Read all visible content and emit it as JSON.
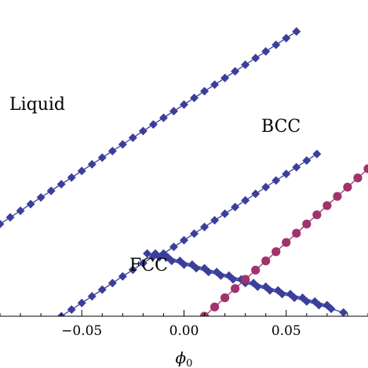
{
  "chart_data": {
    "type": "scatter",
    "xlim": [
      -0.09,
      0.09
    ],
    "xlabel": "ϕ",
    "xlabel_subscript": "0",
    "x_ticks": [
      {
        "value": -0.05,
        "label": "−0.05"
      },
      {
        "value": 0.0,
        "label": "0.00"
      },
      {
        "value": 0.05,
        "label": "0.05"
      }
    ],
    "region_labels": [
      {
        "text": "Liquid"
      },
      {
        "text": "BCC"
      },
      {
        "text": "FCC"
      }
    ],
    "series": [
      {
        "id": "liquid-bcc-boundary",
        "marker": "diamond",
        "color": "#3b3f9b",
        "points": [
          [
            -0.09,
            0.5
          ],
          [
            -0.085,
            0.536
          ],
          [
            -0.08,
            0.572
          ],
          [
            -0.075,
            0.608
          ],
          [
            -0.07,
            0.644
          ],
          [
            -0.065,
            0.68
          ],
          [
            -0.06,
            0.716
          ],
          [
            -0.055,
            0.752
          ],
          [
            -0.05,
            0.788
          ],
          [
            -0.045,
            0.824
          ],
          [
            -0.04,
            0.86
          ],
          [
            -0.035,
            0.896
          ],
          [
            -0.03,
            0.932
          ],
          [
            -0.025,
            0.968
          ],
          [
            -0.02,
            1.004
          ],
          [
            -0.015,
            1.04
          ],
          [
            -0.01,
            1.076
          ],
          [
            -0.005,
            1.112
          ],
          [
            0.0,
            1.148
          ],
          [
            0.005,
            1.184
          ],
          [
            0.01,
            1.22
          ],
          [
            0.015,
            1.256
          ],
          [
            0.02,
            1.292
          ],
          [
            0.025,
            1.328
          ],
          [
            0.03,
            1.364
          ],
          [
            0.035,
            1.4
          ],
          [
            0.04,
            1.436
          ],
          [
            0.045,
            1.472
          ],
          [
            0.05,
            1.508
          ],
          [
            0.055,
            1.544
          ]
        ]
      },
      {
        "id": "fcc-bcc-boundary-left",
        "marker": "diamond",
        "color": "#3b3f9b",
        "points": [
          [
            -0.06,
            0.0
          ],
          [
            -0.055,
            0.036
          ],
          [
            -0.05,
            0.072
          ],
          [
            -0.045,
            0.108
          ],
          [
            -0.04,
            0.144
          ],
          [
            -0.035,
            0.18
          ],
          [
            -0.03,
            0.216
          ],
          [
            -0.025,
            0.252
          ],
          [
            -0.02,
            0.288
          ],
          [
            -0.015,
            0.324
          ],
          [
            -0.01,
            0.34
          ],
          [
            -0.005,
            0.376
          ],
          [
            0.0,
            0.412
          ],
          [
            0.005,
            0.448
          ],
          [
            0.01,
            0.484
          ],
          [
            0.015,
            0.52
          ],
          [
            0.02,
            0.556
          ],
          [
            0.025,
            0.592
          ],
          [
            0.03,
            0.628
          ],
          [
            0.035,
            0.664
          ],
          [
            0.04,
            0.7
          ],
          [
            0.045,
            0.736
          ],
          [
            0.05,
            0.772
          ],
          [
            0.055,
            0.808
          ],
          [
            0.06,
            0.844
          ],
          [
            0.065,
            0.88
          ]
        ]
      },
      {
        "id": "fcc-boundary-right-a",
        "marker": "diamond",
        "color": "#3b3f9b",
        "points": [
          [
            -0.018,
            0.34
          ],
          [
            -0.012,
            0.32
          ],
          [
            -0.006,
            0.3
          ],
          [
            0.0,
            0.28
          ],
          [
            0.006,
            0.26
          ],
          [
            0.012,
            0.24
          ],
          [
            0.018,
            0.22
          ],
          [
            0.024,
            0.2
          ],
          [
            0.03,
            0.18
          ],
          [
            0.036,
            0.16
          ],
          [
            0.042,
            0.14
          ],
          [
            0.048,
            0.12
          ],
          [
            0.054,
            0.1
          ],
          [
            0.06,
            0.08
          ],
          [
            0.066,
            0.06
          ],
          [
            0.072,
            0.04
          ],
          [
            0.078,
            0.02
          ]
        ]
      },
      {
        "id": "fcc-boundary-right-b",
        "marker": "diamond",
        "color": "#3b3f9b",
        "points": [
          [
            -0.014,
            0.34
          ],
          [
            -0.008,
            0.32
          ],
          [
            -0.002,
            0.3
          ],
          [
            0.004,
            0.28
          ],
          [
            0.01,
            0.26
          ],
          [
            0.016,
            0.24
          ],
          [
            0.022,
            0.22
          ],
          [
            0.028,
            0.2
          ],
          [
            0.034,
            0.18
          ],
          [
            0.04,
            0.16
          ],
          [
            0.046,
            0.14
          ],
          [
            0.052,
            0.12
          ],
          [
            0.058,
            0.1
          ],
          [
            0.064,
            0.08
          ],
          [
            0.07,
            0.06
          ]
        ]
      },
      {
        "id": "purple-line",
        "marker": "circle",
        "color": "#a0336b",
        "points": [
          [
            0.01,
            0.0
          ],
          [
            0.015,
            0.05
          ],
          [
            0.02,
            0.1
          ],
          [
            0.025,
            0.15
          ],
          [
            0.03,
            0.2
          ],
          [
            0.035,
            0.25
          ],
          [
            0.04,
            0.3
          ],
          [
            0.045,
            0.35
          ],
          [
            0.05,
            0.4
          ],
          [
            0.055,
            0.45
          ],
          [
            0.06,
            0.5
          ],
          [
            0.065,
            0.55
          ],
          [
            0.07,
            0.6
          ],
          [
            0.075,
            0.65
          ],
          [
            0.08,
            0.7
          ],
          [
            0.085,
            0.75
          ],
          [
            0.09,
            0.8
          ]
        ]
      }
    ]
  }
}
